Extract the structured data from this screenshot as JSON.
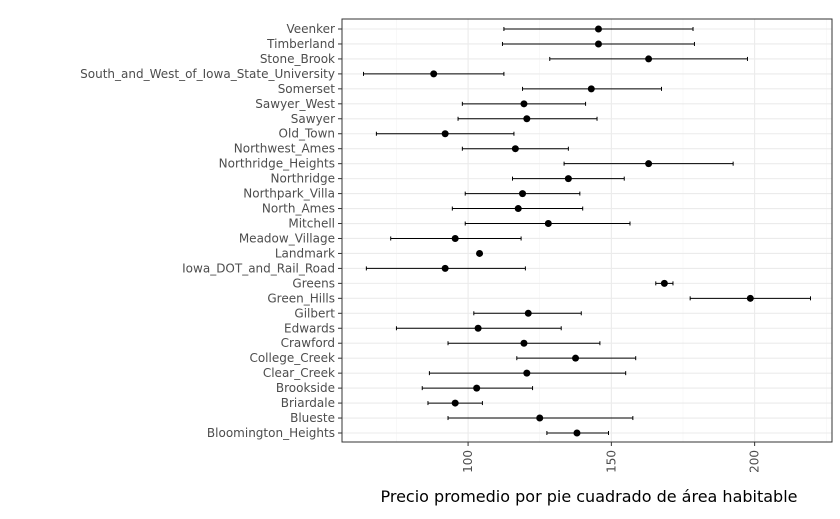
{
  "chart_data": {
    "type": "scatter",
    "title": "",
    "xlabel": "Precio  promedio por pie cuadrado de área habitable",
    "ylabel": "",
    "xlim": [
      56,
      227
    ],
    "x_ticks": [
      100,
      150,
      200
    ],
    "x_tick_labels": [
      "100",
      "150",
      "200"
    ],
    "grid": true,
    "legend": "none",
    "error_bars": true,
    "categories": [
      "Bloomington_Heights",
      "Blueste",
      "Briardale",
      "Brookside",
      "Clear_Creek",
      "College_Creek",
      "Crawford",
      "Edwards",
      "Gilbert",
      "Green_Hills",
      "Greens",
      "Iowa_DOT_and_Rail_Road",
      "Landmark",
      "Meadow_Village",
      "Mitchell",
      "North_Ames",
      "Northpark_Villa",
      "Northridge",
      "Northridge_Heights",
      "Northwest_Ames",
      "Old_Town",
      "Sawyer",
      "Sawyer_West",
      "Somerset",
      "South_and_West_of_Iowa_State_University",
      "Stone_Brook",
      "Timberland",
      "Veenker"
    ],
    "points": [
      {
        "category": "Bloomington_Heights",
        "mean": 138,
        "low": 127.5,
        "high": 149
      },
      {
        "category": "Blueste",
        "mean": 125,
        "low": 93,
        "high": 157.5
      },
      {
        "category": "Briardale",
        "mean": 95.5,
        "low": 86,
        "high": 105
      },
      {
        "category": "Brookside",
        "mean": 103,
        "low": 84,
        "high": 122.5
      },
      {
        "category": "Clear_Creek",
        "mean": 120.5,
        "low": 86.5,
        "high": 155
      },
      {
        "category": "College_Creek",
        "mean": 137.5,
        "low": 117,
        "high": 158.5
      },
      {
        "category": "Crawford",
        "mean": 119.5,
        "low": 93,
        "high": 146
      },
      {
        "category": "Edwards",
        "mean": 103.5,
        "low": 75,
        "high": 132.5
      },
      {
        "category": "Gilbert",
        "mean": 121,
        "low": 102,
        "high": 139.5
      },
      {
        "category": "Green_Hills",
        "mean": 198.5,
        "low": 177.5,
        "high": 219.5
      },
      {
        "category": "Greens",
        "mean": 168.5,
        "low": 165.5,
        "high": 171.5
      },
      {
        "category": "Iowa_DOT_and_Rail_Road",
        "mean": 92,
        "low": 64.5,
        "high": 120
      },
      {
        "category": "Landmark",
        "mean": 104,
        "low": 104,
        "high": 104
      },
      {
        "category": "Meadow_Village",
        "mean": 95.5,
        "low": 73,
        "high": 118.5
      },
      {
        "category": "Mitchell",
        "mean": 128,
        "low": 99,
        "high": 156.5
      },
      {
        "category": "North_Ames",
        "mean": 117.5,
        "low": 94.5,
        "high": 140
      },
      {
        "category": "Northpark_Villa",
        "mean": 119,
        "low": 99,
        "high": 139
      },
      {
        "category": "Northridge",
        "mean": 135,
        "low": 115.5,
        "high": 154.5
      },
      {
        "category": "Northridge_Heights",
        "mean": 163,
        "low": 133.5,
        "high": 192.5
      },
      {
        "category": "Northwest_Ames",
        "mean": 116.5,
        "low": 98,
        "high": 135
      },
      {
        "category": "Old_Town",
        "mean": 92,
        "low": 68,
        "high": 116
      },
      {
        "category": "Sawyer",
        "mean": 120.5,
        "low": 96.5,
        "high": 145
      },
      {
        "category": "Sawyer_West",
        "mean": 119.5,
        "low": 98,
        "high": 141
      },
      {
        "category": "Somerset",
        "mean": 143,
        "low": 119,
        "high": 167.5
      },
      {
        "category": "South_and_West_of_Iowa_State_University",
        "mean": 88,
        "low": 63.5,
        "high": 112.5
      },
      {
        "category": "Stone_Brook",
        "mean": 163,
        "low": 128.5,
        "high": 197.5
      },
      {
        "category": "Timberland",
        "mean": 145.5,
        "low": 112,
        "high": 179
      },
      {
        "category": "Veenker",
        "mean": 145.5,
        "low": 112.5,
        "high": 178.5
      }
    ],
    "colors": {
      "point": "#000000",
      "errorbar": "#000000",
      "grid_major": "#ebebeb",
      "grid_minor": "#f4f4f4",
      "panel_border": "#333333",
      "tick_text": "#4d4d4d"
    }
  }
}
